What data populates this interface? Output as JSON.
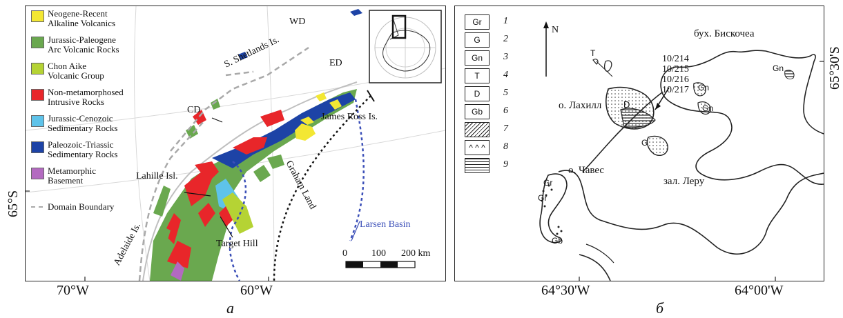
{
  "panel_a": {
    "legend": [
      {
        "text": "Neogene-Recent\nAlkaline Volcanics",
        "color": "#f3e733"
      },
      {
        "text": "Jurassic-Paleogene\nArc Volcanic Rocks",
        "color": "#6aa84f"
      },
      {
        "text": "Chon Aike\nVolcanic Group",
        "color": "#b5d334"
      },
      {
        "text": "Non-metamorphosed\nIntrusive Rocks",
        "color": "#e8262a"
      },
      {
        "text": "Jurassic-Cenozoic\nSedimentary Rocks",
        "color": "#5ec3ea"
      },
      {
        "text": "Paleozoic-Triassic\nSedimentary Rocks",
        "color": "#1d43a6"
      },
      {
        "text": "Metamorphic\nBasement",
        "color": "#b36ac0"
      }
    ],
    "domain_boundary_label": "Domain Boundary",
    "labels": {
      "wd": "WD",
      "ed": "ED",
      "cd": "CD",
      "shetlands": "S. Shetlands Is.",
      "james_ross": "James Ross Is.",
      "lahille": "Lahille Isl.",
      "target_hill": "Target Hill",
      "graham_land": "Graham Land",
      "adelaide": "Adelaide Is.",
      "larsen": "Larsen Basin"
    },
    "scale": {
      "t0": "0",
      "t100": "100",
      "t200": "200 km"
    },
    "axis": {
      "x1": "70°W",
      "x2": "60°W",
      "y1": "65°S"
    },
    "caption": "а"
  },
  "panel_b": {
    "legend": [
      {
        "code": "Gr",
        "num": "1"
      },
      {
        "code": "G",
        "num": "2"
      },
      {
        "code": "Gn",
        "num": "3"
      },
      {
        "code": "T",
        "num": "4"
      },
      {
        "code": "D",
        "num": "5"
      },
      {
        "code": "Gb",
        "num": "6"
      },
      {
        "code": "",
        "num": "7",
        "pattern": "hatch"
      },
      {
        "code": "^ ^ ^",
        "num": "8"
      },
      {
        "code": "",
        "num": "9",
        "pattern": "horiz"
      }
    ],
    "north": "N",
    "labels": {
      "bay": "бух. Бискочеа",
      "lahill": "о. Лахилл",
      "chaves": "о. Чавес",
      "leru": "зал. Леру",
      "s1": "10/214",
      "s2": "10/215",
      "s3": "10/216",
      "s4": "10/217"
    },
    "map_codes": {
      "t": "T",
      "d": "D",
      "g": "G",
      "gn1": "Gn",
      "gn2": "Gn",
      "gn3": "Gn",
      "gr1": "Gr",
      "gr2": "Gr",
      "gb": "Gb"
    },
    "axis": {
      "x1": "64°30'W",
      "x2": "64°00'W",
      "y1": "65°30'S"
    },
    "caption": "б"
  }
}
